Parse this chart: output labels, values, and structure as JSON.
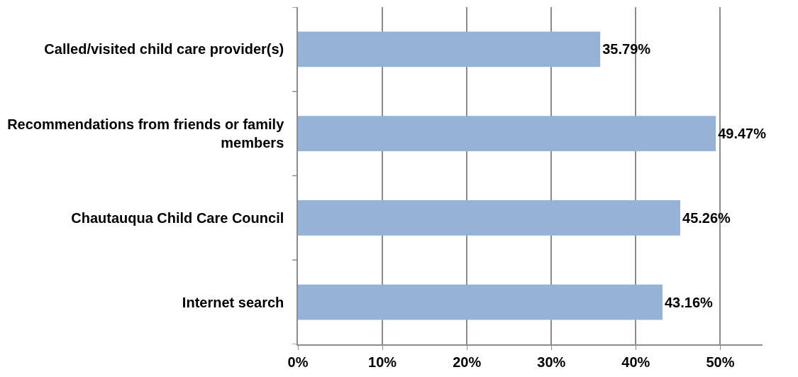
{
  "chart_data": {
    "type": "bar",
    "orientation": "horizontal",
    "categories": [
      "Called/visited child care provider(s)",
      "Recommendations from friends or family members",
      "Chautauqua Child Care Council",
      "Internet search"
    ],
    "values": [
      35.79,
      49.47,
      45.26,
      43.16
    ],
    "value_labels": [
      "35.79%",
      "49.47%",
      "45.26%",
      "43.16%"
    ],
    "color": "#95b3d7",
    "xlim": [
      0,
      55
    ],
    "xticks": [
      {
        "value": 0,
        "label": "0%"
      },
      {
        "value": 10,
        "label": "10%"
      },
      {
        "value": 20,
        "label": "20%"
      },
      {
        "value": 30,
        "label": "30%"
      },
      {
        "value": 40,
        "label": "40%"
      },
      {
        "value": 50,
        "label": "50%"
      }
    ],
    "grid": "x"
  }
}
